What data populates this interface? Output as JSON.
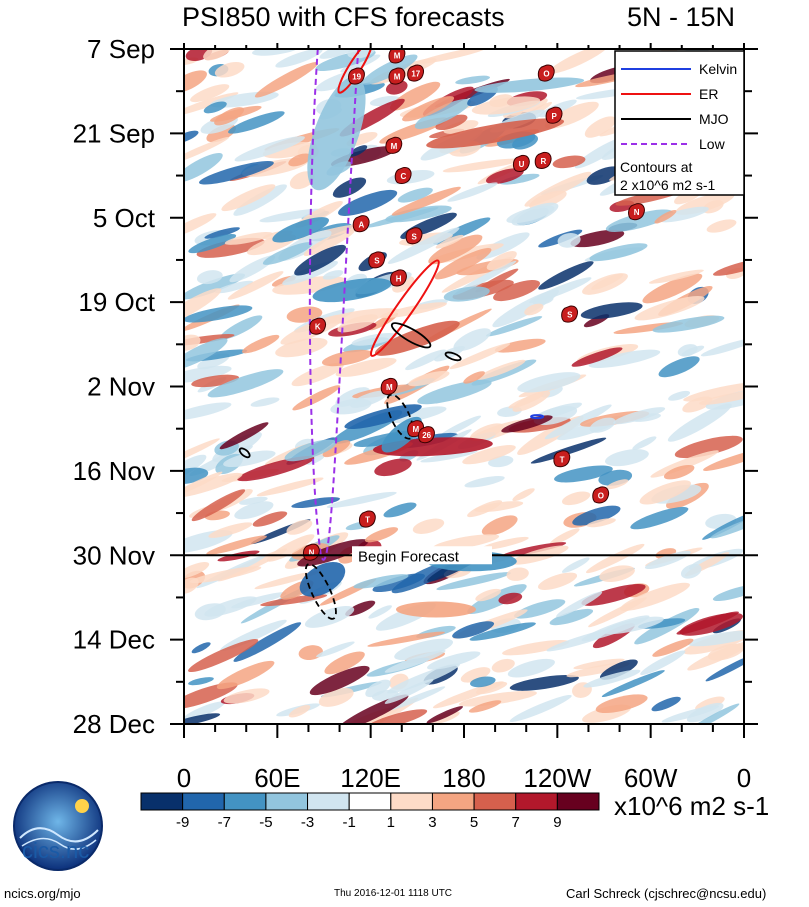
{
  "chart_data": {
    "type": "heatmap",
    "title": "PSI850 with CFS forecasts",
    "region": "5N - 15N",
    "xaxis": {
      "ticks": [
        "0",
        "60E",
        "120E",
        "180",
        "120W",
        "60W",
        "0"
      ],
      "values": [
        0,
        60,
        120,
        180,
        240,
        300,
        360
      ],
      "range": [
        0,
        360
      ]
    },
    "yaxis": {
      "ticks": [
        "7 Sep",
        "21 Sep",
        "5 Oct",
        "19 Oct",
        "2 Nov",
        "16 Nov",
        "30 Nov",
        "14 Dec",
        "28 Dec"
      ],
      "range_days": [
        0,
        112
      ]
    },
    "forecast_line": {
      "day": 84,
      "label": "Begin Forecast"
    },
    "colorbar": {
      "levels": [
        "-9",
        "-7",
        "-5",
        "-3",
        "-1",
        "1",
        "3",
        "5",
        "7",
        "9"
      ],
      "colors": [
        "#08306b",
        "#2166ac",
        "#4393c3",
        "#92c5de",
        "#d1e5f0",
        "#ffffff",
        "#fddbc7",
        "#f4a582",
        "#d6604d",
        "#b2182b",
        "#67001f"
      ],
      "unit": "x10^6 m2 s-1"
    },
    "legend": {
      "items": [
        {
          "label": "Kelvin",
          "color": "#1f3fe0",
          "dash": "solid"
        },
        {
          "label": "ER",
          "color": "#ee1111",
          "dash": "solid"
        },
        {
          "label": "MJO",
          "color": "#000000",
          "dash": "solid"
        },
        {
          "label": "Low",
          "color": "#9b30e8",
          "dash": "dashed"
        }
      ],
      "note_line1": "Contours at",
      "note_line2": "2 x10^6 m2 s-1"
    },
    "storms": [
      {
        "lon": 137,
        "day": 1,
        "label": "M"
      },
      {
        "lon": 111,
        "day": 4.5,
        "label": "19"
      },
      {
        "lon": 137,
        "day": 4.5,
        "label": "M"
      },
      {
        "lon": 149,
        "day": 4,
        "label": "17"
      },
      {
        "lon": 233,
        "day": 4,
        "label": "O"
      },
      {
        "lon": 238,
        "day": 11,
        "label": "P"
      },
      {
        "lon": 135,
        "day": 16,
        "label": "M"
      },
      {
        "lon": 217,
        "day": 19,
        "label": "U"
      },
      {
        "lon": 231,
        "day": 18.5,
        "label": "R"
      },
      {
        "lon": 141,
        "day": 21,
        "label": "C"
      },
      {
        "lon": 291,
        "day": 27,
        "label": "N"
      },
      {
        "lon": 114,
        "day": 29,
        "label": "A"
      },
      {
        "lon": 148,
        "day": 31,
        "label": "S"
      },
      {
        "lon": 124,
        "day": 35,
        "label": "S"
      },
      {
        "lon": 138,
        "day": 38,
        "label": "H"
      },
      {
        "lon": 248,
        "day": 44,
        "label": "S"
      },
      {
        "lon": 86,
        "day": 46,
        "label": "K"
      },
      {
        "lon": 132,
        "day": 56,
        "label": "M"
      },
      {
        "lon": 149,
        "day": 63,
        "label": "M"
      },
      {
        "lon": 156,
        "day": 64,
        "label": "26"
      },
      {
        "lon": 243,
        "day": 68,
        "label": "T"
      },
      {
        "lon": 268,
        "day": 74,
        "label": "O"
      },
      {
        "lon": 118,
        "day": 78,
        "label": "T"
      },
      {
        "lon": 82,
        "day": 83.5,
        "label": "N"
      }
    ]
  },
  "footer": {
    "url": "ncics.org/mjo",
    "timestamp": "Thu 2016-12-01 1118 UTC",
    "author": "Carl Schreck (cjschrec@ncsu.edu)",
    "brand": "cics.nc"
  }
}
